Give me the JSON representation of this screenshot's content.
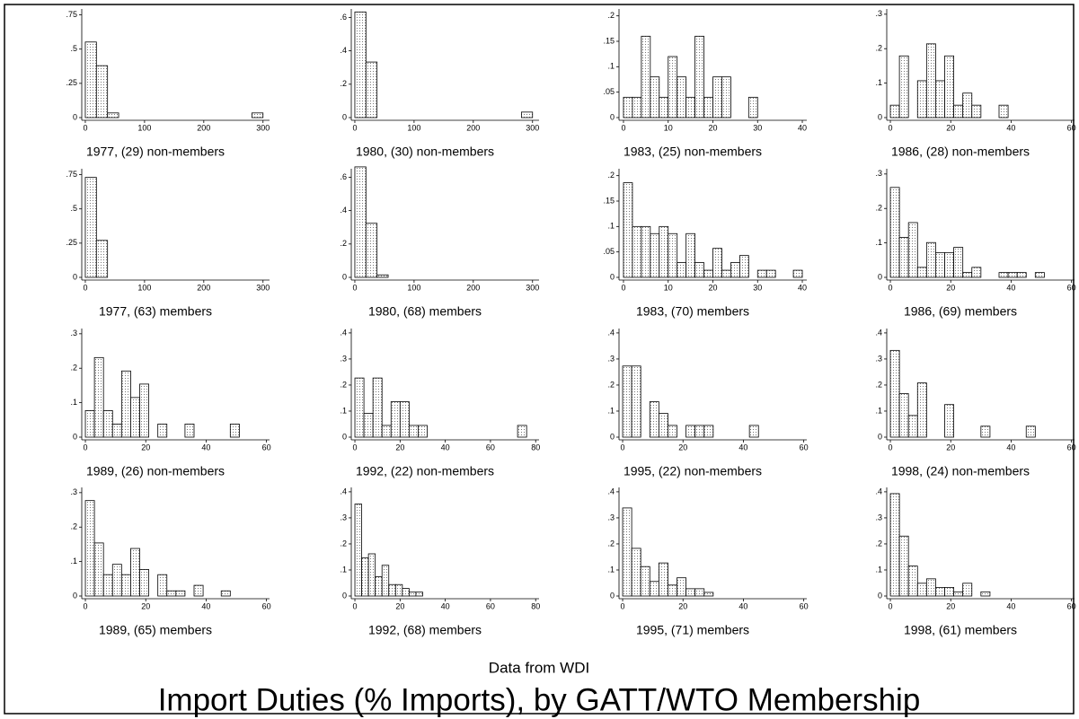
{
  "figure": {
    "note": "Data from WDI",
    "title": "Import Duties (% Imports), by GATT/WTO Membership"
  },
  "chart_data": [
    {
      "type": "histogram",
      "title": "1977, (29) non-members",
      "color": "#000000",
      "bins": [
        0,
        18.75,
        37.5,
        56.25,
        75,
        93.75,
        112.5,
        131.25,
        150,
        168.75,
        187.5,
        206.25,
        225,
        243.75,
        262.5,
        281.25,
        300
      ],
      "values": [
        0.552,
        0.379,
        0.034,
        0,
        0,
        0,
        0,
        0,
        0,
        0,
        0,
        0,
        0,
        0,
        0,
        0.034
      ],
      "xlim": [
        -6,
        311
      ],
      "xticks": [
        0,
        100,
        200,
        300
      ],
      "ylim": [
        0,
        0.78
      ],
      "yticks": [
        0,
        {
          "value": 0.25,
          "label": ".25"
        },
        {
          "value": 0.5,
          "label": ".5"
        },
        {
          "value": 0.75,
          "label": ".75"
        }
      ]
    },
    {
      "type": "histogram",
      "title": "1980, (30) non-members",
      "color": "#000000",
      "bins": [
        0,
        18.75,
        37.5,
        56.25,
        75,
        93.75,
        112.5,
        131.25,
        150,
        168.75,
        187.5,
        206.25,
        225,
        243.75,
        262.5,
        281.25,
        300
      ],
      "values": [
        0.633,
        0.333,
        0,
        0,
        0,
        0,
        0,
        0,
        0,
        0,
        0,
        0,
        0,
        0,
        0,
        0.033
      ],
      "xlim": [
        -6,
        311
      ],
      "xticks": [
        0,
        100,
        200,
        300
      ],
      "ylim": [
        0,
        0.64
      ],
      "yticks": [
        0,
        {
          "value": 0.2,
          "label": ".2"
        },
        {
          "value": 0.4,
          "label": ".4"
        },
        {
          "value": 0.6,
          "label": ".6"
        }
      ]
    },
    {
      "type": "histogram",
      "title": "1983, (25) non-members",
      "color": "#000000",
      "bins": [
        0,
        2,
        4,
        6,
        8,
        10,
        12,
        14,
        16,
        18,
        20,
        22,
        24,
        26,
        28,
        30
      ],
      "values": [
        0.04,
        0.04,
        0.16,
        0.08,
        0.04,
        0.12,
        0.08,
        0.04,
        0.16,
        0.04,
        0.08,
        0.08,
        0,
        0,
        0.04
      ],
      "xlim": [
        -1,
        41
      ],
      "xticks": [
        0,
        10,
        20,
        30,
        40
      ],
      "ylim": [
        0,
        0.21
      ],
      "yticks": [
        0,
        {
          "value": 0.05,
          "label": ".05"
        },
        {
          "value": 0.1,
          "label": ".1"
        },
        {
          "value": 0.15,
          "label": ".15"
        },
        {
          "value": 0.2,
          "label": ".2"
        }
      ]
    },
    {
      "type": "histogram",
      "title": "1986, (28) non-members",
      "color": "#000000",
      "bins": [
        0,
        3,
        6,
        9,
        12,
        15,
        18,
        21,
        24,
        27,
        30,
        33,
        36,
        39
      ],
      "values": [
        0.036,
        0.179,
        0,
        0.107,
        0.214,
        0.107,
        0.179,
        0.036,
        0.071,
        0.036,
        0,
        0,
        0.036
      ],
      "xlim": [
        -1.2,
        61
      ],
      "xticks": [
        0,
        20,
        40,
        60
      ],
      "ylim": [
        0,
        0.31
      ],
      "yticks": [
        0,
        {
          "value": 0.1,
          "label": ".1"
        },
        {
          "value": 0.2,
          "label": ".2"
        },
        {
          "value": 0.3,
          "label": ".3"
        }
      ]
    },
    {
      "type": "histogram",
      "title": "1977, (63) members",
      "color": "#000000",
      "bins": [
        0,
        18.75,
        37.5,
        56.25,
        75,
        93.75,
        112.5,
        131.25,
        150,
        168.75,
        187.5,
        206.25,
        225,
        243.75,
        262.5,
        281.25,
        300
      ],
      "values": [
        0.73,
        0.27,
        0,
        0,
        0,
        0,
        0,
        0,
        0,
        0,
        0,
        0,
        0,
        0,
        0,
        0
      ],
      "xlim": [
        -6,
        311
      ],
      "xticks": [
        0,
        100,
        200,
        300
      ],
      "ylim": [
        0,
        0.78
      ],
      "yticks": [
        0,
        {
          "value": 0.25,
          "label": ".25"
        },
        {
          "value": 0.5,
          "label": ".5"
        },
        {
          "value": 0.75,
          "label": ".75"
        }
      ]
    },
    {
      "type": "histogram",
      "title": "1980, (68) members",
      "color": "#000000",
      "bins": [
        0,
        18.75,
        37.5,
        56.25,
        75,
        93.75,
        112.5,
        131.25,
        150,
        168.75,
        187.5,
        206.25,
        225,
        243.75,
        262.5,
        281.25,
        300
      ],
      "values": [
        0.662,
        0.324,
        0.015,
        0,
        0,
        0,
        0,
        0,
        0,
        0,
        0,
        0,
        0,
        0,
        0,
        0
      ],
      "xlim": [
        -6,
        311
      ],
      "xticks": [
        0,
        100,
        200,
        300
      ],
      "ylim": [
        0,
        0.64
      ],
      "yticks": [
        0,
        {
          "value": 0.2,
          "label": ".2"
        },
        {
          "value": 0.4,
          "label": ".4"
        },
        {
          "value": 0.6,
          "label": ".6"
        }
      ]
    },
    {
      "type": "histogram",
      "title": "1983, (70) members",
      "color": "#000000",
      "bins": [
        0,
        2,
        4,
        6,
        8,
        10,
        12,
        14,
        16,
        18,
        20,
        22,
        24,
        26,
        28,
        30,
        32,
        34,
        36,
        38,
        40
      ],
      "values": [
        0.186,
        0.1,
        0.1,
        0.086,
        0.1,
        0.086,
        0.029,
        0.086,
        0.029,
        0.014,
        0.057,
        0.014,
        0.029,
        0.043,
        0,
        0.014,
        0.014,
        0,
        0,
        0.014
      ],
      "xlim": [
        -1,
        41
      ],
      "xticks": [
        0,
        10,
        20,
        30,
        40
      ],
      "ylim": [
        0,
        0.21
      ],
      "yticks": [
        0,
        {
          "value": 0.05,
          "label": ".05"
        },
        {
          "value": 0.1,
          "label": ".1"
        },
        {
          "value": 0.15,
          "label": ".15"
        },
        {
          "value": 0.2,
          "label": ".2"
        }
      ]
    },
    {
      "type": "histogram",
      "title": "1986, (69) members",
      "color": "#000000",
      "bins": [
        0,
        3,
        6,
        9,
        12,
        15,
        18,
        21,
        24,
        27,
        30,
        33,
        36,
        39,
        42,
        45,
        48,
        51
      ],
      "values": [
        0.261,
        0.116,
        0.159,
        0.029,
        0.101,
        0.072,
        0.072,
        0.087,
        0.014,
        0.029,
        0,
        0,
        0.014,
        0.014,
        0.014,
        0,
        0.014
      ],
      "xlim": [
        -1.2,
        61
      ],
      "xticks": [
        0,
        20,
        40,
        60
      ],
      "ylim": [
        0,
        0.31
      ],
      "yticks": [
        0,
        {
          "value": 0.1,
          "label": ".1"
        },
        {
          "value": 0.2,
          "label": ".2"
        },
        {
          "value": 0.3,
          "label": ".3"
        }
      ]
    },
    {
      "type": "histogram",
      "title": "1989, (26) non-members",
      "color": "#000000",
      "bins": [
        0,
        3,
        6,
        9,
        12,
        15,
        18,
        21,
        24,
        27,
        30,
        33,
        36,
        39,
        42,
        45,
        48,
        51
      ],
      "values": [
        0.077,
        0.231,
        0.077,
        0.038,
        0.192,
        0.115,
        0.154,
        0,
        0.038,
        0,
        0,
        0.038,
        0,
        0,
        0,
        0,
        0.038
      ],
      "xlim": [
        -1.2,
        61
      ],
      "xticks": [
        0,
        20,
        40,
        60
      ],
      "ylim": [
        0,
        0.31
      ],
      "yticks": [
        0,
        {
          "value": 0.1,
          "label": ".1"
        },
        {
          "value": 0.2,
          "label": ".2"
        },
        {
          "value": 0.3,
          "label": ".3"
        }
      ]
    },
    {
      "type": "histogram",
      "title": "1992, (22) non-members",
      "color": "#000000",
      "bins": [
        0,
        4,
        8,
        12,
        16,
        20,
        24,
        28,
        32,
        36,
        40,
        44,
        48,
        52,
        56,
        60,
        64,
        68,
        72,
        76
      ],
      "values": [
        0.227,
        0.091,
        0.227,
        0.045,
        0.136,
        0.136,
        0.045,
        0.045,
        0,
        0,
        0,
        0,
        0,
        0,
        0,
        0,
        0,
        0,
        0.045
      ],
      "xlim": [
        -1.6,
        81.5
      ],
      "xticks": [
        0,
        20,
        40,
        60,
        80
      ],
      "ylim": [
        0,
        0.41
      ],
      "yticks": [
        0,
        {
          "value": 0.1,
          "label": ".1"
        },
        {
          "value": 0.2,
          "label": ".2"
        },
        {
          "value": 0.3,
          "label": ".3"
        },
        {
          "value": 0.4,
          "label": ".4"
        }
      ]
    },
    {
      "type": "histogram",
      "title": "1995, (22) non-members",
      "color": "#000000",
      "bins": [
        0,
        3,
        6,
        9,
        12,
        15,
        18,
        21,
        24,
        27,
        30,
        33,
        36,
        39,
        42,
        45
      ],
      "values": [
        0.273,
        0.273,
        0,
        0.136,
        0.091,
        0.045,
        0,
        0.045,
        0.045,
        0.045,
        0,
        0,
        0,
        0,
        0.045
      ],
      "xlim": [
        -1.2,
        61
      ],
      "xticks": [
        0,
        20,
        40,
        60
      ],
      "ylim": [
        0,
        0.41
      ],
      "yticks": [
        0,
        {
          "value": 0.1,
          "label": ".1"
        },
        {
          "value": 0.2,
          "label": ".2"
        },
        {
          "value": 0.3,
          "label": ".3"
        },
        {
          "value": 0.4,
          "label": ".4"
        }
      ]
    },
    {
      "type": "histogram",
      "title": "1998, (24) non-members",
      "color": "#000000",
      "bins": [
        0,
        3,
        6,
        9,
        12,
        15,
        18,
        21,
        24,
        27,
        30,
        33,
        36,
        39,
        42,
        45,
        48
      ],
      "values": [
        0.333,
        0.167,
        0.083,
        0.208,
        0,
        0,
        0.125,
        0,
        0,
        0,
        0.042,
        0,
        0,
        0,
        0,
        0.042
      ],
      "xlim": [
        -1.2,
        61
      ],
      "xticks": [
        0,
        20,
        40,
        60
      ],
      "ylim": [
        0,
        0.41
      ],
      "yticks": [
        0,
        {
          "value": 0.1,
          "label": ".1"
        },
        {
          "value": 0.2,
          "label": ".2"
        },
        {
          "value": 0.3,
          "label": ".3"
        },
        {
          "value": 0.4,
          "label": ".4"
        }
      ]
    },
    {
      "type": "histogram",
      "title": "1989, (65) members",
      "color": "#000000",
      "bins": [
        0,
        3,
        6,
        9,
        12,
        15,
        18,
        21,
        24,
        27,
        30,
        33,
        36,
        39,
        42,
        45,
        48
      ],
      "values": [
        0.277,
        0.154,
        0.062,
        0.092,
        0.062,
        0.138,
        0.077,
        0,
        0.062,
        0.015,
        0.015,
        0,
        0.031,
        0,
        0,
        0.015
      ],
      "xlim": [
        -1.2,
        61
      ],
      "xticks": [
        0,
        20,
        40,
        60
      ],
      "ylim": [
        0,
        0.31
      ],
      "yticks": [
        0,
        {
          "value": 0.1,
          "label": ".1"
        },
        {
          "value": 0.2,
          "label": ".2"
        },
        {
          "value": 0.3,
          "label": ".3"
        }
      ]
    },
    {
      "type": "histogram",
      "title": "1992, (68) members",
      "color": "#000000",
      "bins": [
        0,
        3,
        6,
        9,
        12,
        15,
        18,
        21,
        24,
        27,
        30
      ],
      "values": [
        0.353,
        0.147,
        0.162,
        0.074,
        0.118,
        0.044,
        0.044,
        0.029,
        0.015,
        0.015
      ],
      "xlim": [
        -1.6,
        81.5
      ],
      "xticks": [
        0,
        20,
        40,
        60,
        80
      ],
      "ylim": [
        0,
        0.41
      ],
      "yticks": [
        0,
        {
          "value": 0.1,
          "label": ".1"
        },
        {
          "value": 0.2,
          "label": ".2"
        },
        {
          "value": 0.3,
          "label": ".3"
        },
        {
          "value": 0.4,
          "label": ".4"
        }
      ]
    },
    {
      "type": "histogram",
      "title": "1995, (71) members",
      "color": "#000000",
      "bins": [
        0,
        3,
        6,
        9,
        12,
        15,
        18,
        21,
        24,
        27,
        30
      ],
      "values": [
        0.338,
        0.183,
        0.113,
        0.056,
        0.127,
        0.042,
        0.07,
        0.028,
        0.028,
        0.014
      ],
      "xlim": [
        -1.2,
        61
      ],
      "xticks": [
        0,
        20,
        40,
        60
      ],
      "ylim": [
        0,
        0.41
      ],
      "yticks": [
        0,
        {
          "value": 0.1,
          "label": ".1"
        },
        {
          "value": 0.2,
          "label": ".2"
        },
        {
          "value": 0.3,
          "label": ".3"
        },
        {
          "value": 0.4,
          "label": ".4"
        }
      ]
    },
    {
      "type": "histogram",
      "title": "1998, (61) members",
      "color": "#000000",
      "bins": [
        0,
        3,
        6,
        9,
        12,
        15,
        18,
        21,
        24,
        27,
        30,
        33
      ],
      "values": [
        0.393,
        0.23,
        0.115,
        0.049,
        0.066,
        0.033,
        0.033,
        0.016,
        0.049,
        0,
        0.016
      ],
      "xlim": [
        -1.2,
        61
      ],
      "xticks": [
        0,
        20,
        40,
        60
      ],
      "ylim": [
        0,
        0.41
      ],
      "yticks": [
        0,
        {
          "value": 0.1,
          "label": ".1"
        },
        {
          "value": 0.2,
          "label": ".2"
        },
        {
          "value": 0.3,
          "label": ".3"
        },
        {
          "value": 0.4,
          "label": ".4"
        }
      ]
    }
  ]
}
